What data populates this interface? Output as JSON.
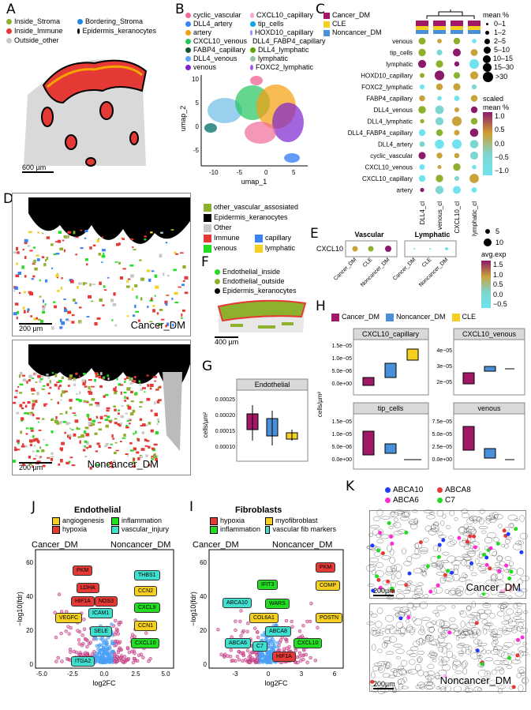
{
  "panels": {
    "A": "A",
    "B": "B",
    "C": "C",
    "D": "D",
    "E": "E",
    "F": "F",
    "G": "G",
    "H": "H",
    "I": "I",
    "J": "J",
    "K": "K"
  },
  "A": {
    "legend": [
      "Inside_Stroma",
      "Bordering_Stroma",
      "Inside_Immune",
      "Epidermis_keranocytes",
      "Outside_other"
    ],
    "colors": [
      "#8db02d",
      "#1e88e5",
      "#e53935",
      "#000000",
      "#c8c8c8"
    ],
    "scale": "600 µm"
  },
  "B": {
    "legend_col1": [
      "cyclic_vascular",
      "DLL4_artery",
      "artery",
      "CXCL10_venous",
      "FABP4_capillary",
      "DLL4_venous",
      "venous"
    ],
    "legend_col2": [
      "CXCL10_capillary",
      "tip_cells",
      "HOXD10_capillary",
      "DLL4_FABP4_capillary",
      "DLL4_lymphatic",
      "lymphatic",
      "FOXC2_lymphatic"
    ],
    "colors1": [
      "#f06b9a",
      "#3b82f6",
      "#f59e0b",
      "#22c55e",
      "#14532d",
      "#60a5fa",
      "#7e22ce"
    ],
    "colors2": [
      "#f9a8d4",
      "#0ea5e9",
      "#a78bfa",
      "#0f766e",
      "#65a30d",
      "#99c2a2",
      "#a855f7"
    ],
    "xlabel": "umap_1",
    "ylabel": "umap_2",
    "xticks": [
      "-10",
      "-5",
      "0",
      "5"
    ],
    "yticks": [
      "-5",
      "0",
      "5",
      "10"
    ]
  },
  "C": {
    "legend_groups": [
      "Cancer_DM",
      "CLE",
      "Noncancer_DM"
    ],
    "group_colors": [
      "#a01866",
      "#f5d020",
      "#4a90d9"
    ],
    "rows": [
      "venous",
      "tip_cells",
      "lymphatic",
      "HOXD10_capillary",
      "FOXC2_lymphatic",
      "FABP4_capillary",
      "DLL4_venous",
      "DLL4_lymphatic",
      "DLL4_FABP4_capillary",
      "DLL4_artery",
      "cyclic_vascular",
      "CXCL10_venous",
      "CXCL10_capillary",
      "artery"
    ],
    "cols": [
      "DLL4_cl",
      "venous_cl",
      "CXCL10_cl",
      "lymphatic_cl"
    ],
    "size_title": "mean %",
    "sizes": [
      "0–1",
      "1–2",
      "2–5",
      "5–10",
      "10–15",
      "15–30",
      ">30"
    ],
    "color_title": "scaled mean %",
    "color_ticks": [
      "1.0",
      "0.5",
      "0.0",
      "−0.5",
      "−1.0"
    ]
  },
  "D": {
    "legend": [
      "other_vascular_assosiated",
      "Epidermis_keranocytes",
      "Other",
      "Immune",
      "capillary",
      "venous",
      "lymphatic"
    ],
    "colors": [
      "#8db02d",
      "#000000",
      "#c8c8c8",
      "#e53935",
      "#3b82f6",
      "#22dd22",
      "#f5d020"
    ],
    "top_label": "Cancer_DM",
    "bottom_label": "Noncancer_DM",
    "scale": "200 µm"
  },
  "E": {
    "facets": [
      "Vascular",
      "Lymphatic"
    ],
    "gene": "CXCL10",
    "xticks": [
      "Cancer_DM",
      "CLE",
      "Noncancer_DM",
      "Cancer_DM",
      "CLE",
      "Noncancer_DM"
    ],
    "size_ticks": [
      "5",
      "10"
    ],
    "color_title": "avg.exp",
    "color_ticks": [
      "1.5",
      "1.0",
      "0.5",
      "0.0",
      "−0.5"
    ]
  },
  "F": {
    "legend": [
      "Endothelial_inside",
      "Endothelial_outside",
      "Epidermis_keranocytes"
    ],
    "colors": [
      "#22dd22",
      "#8db02d",
      "#000000"
    ],
    "scale": "400 µm"
  },
  "G": {
    "facet": "Endothelial",
    "ylabel": "cells/µm²",
    "yticks": [
      "0.00025",
      "0.00020",
      "0.00015",
      "0.00010"
    ]
  },
  "H": {
    "legend": [
      "Cancer_DM",
      "Noncancer_DM",
      "CLE"
    ],
    "colors": [
      "#a01866",
      "#4a90d9",
      "#f5d020"
    ],
    "facets": [
      "CXCL10_capillary",
      "CXCL10_venous",
      "tip_cells",
      "venous"
    ],
    "ylabel": "cells/µm²",
    "yticks_a": [
      "1.5e−05",
      "1.0e−05",
      "5.0e−06",
      "0.0e+00"
    ],
    "yticks_b": [
      "4e−05",
      "3e−05",
      "2e−05"
    ],
    "yticks_c": [
      "1.5e−05",
      "1.0e−05",
      "5.0e−06",
      "0.0e+00"
    ],
    "yticks_d": [
      "7.5e−05",
      "5.0e−05",
      "2.5e−05",
      "0.0e+00"
    ]
  },
  "J": {
    "title": "Endothelial",
    "legend": [
      "angiogenesis",
      "inflammation",
      "hypoxia",
      "vascular_injury"
    ],
    "legend_colors": [
      "#f5d020",
      "#22dd22",
      "#e53935",
      "#40e0d0"
    ],
    "left": "Cancer_DM",
    "right": "Noncancer_DM",
    "xlabel": "log2FC",
    "ylabel": "−log10(fdr)",
    "xticks": [
      "-5.0",
      "-2.5",
      "0.0",
      "2.5",
      "5.0"
    ],
    "yticks": [
      "0",
      "20",
      "40",
      "60"
    ],
    "genes": [
      {
        "g": "PKM",
        "c": "#e53935"
      },
      {
        "g": "LDHA",
        "c": "#e53935"
      },
      {
        "g": "HIF1A",
        "c": "#e53935"
      },
      {
        "g": "NOS3",
        "c": "#e53935"
      },
      {
        "g": "VEGFC",
        "c": "#f5d020"
      },
      {
        "g": "ICAM1",
        "c": "#40e0d0"
      },
      {
        "g": "SELE",
        "c": "#40e0d0"
      },
      {
        "g": "ITGA2",
        "c": "#40e0d0"
      },
      {
        "g": "THBS1",
        "c": "#40e0d0"
      },
      {
        "g": "CCN2",
        "c": "#f5d020"
      },
      {
        "g": "CXCL9",
        "c": "#22dd22"
      },
      {
        "g": "CCN1",
        "c": "#f5d020"
      },
      {
        "g": "CXCL10",
        "c": "#22dd22"
      }
    ]
  },
  "I": {
    "title": "Fibroblasts",
    "legend": [
      "hypoxia",
      "myofibroblast",
      "inflammation",
      "vascular fib markers"
    ],
    "legend_colors": [
      "#e53935",
      "#f5d020",
      "#22dd22",
      "#40e0d0"
    ],
    "left": "Cancer_DM",
    "right": "Noncancer_DM",
    "xlabel": "log2FC",
    "ylabel": "−log10(fdr)",
    "xticks": [
      "-3",
      "0",
      "3",
      "6"
    ],
    "yticks": [
      "0",
      "20",
      "40",
      "60"
    ],
    "genes": [
      {
        "g": "PKM",
        "c": "#e53935"
      },
      {
        "g": "IFIT3",
        "c": "#22dd22"
      },
      {
        "g": "COMP",
        "c": "#f5d020"
      },
      {
        "g": "ABCA10",
        "c": "#40e0d0"
      },
      {
        "g": "WARS",
        "c": "#22dd22"
      },
      {
        "g": "COL6A1",
        "c": "#f5d020"
      },
      {
        "g": "POSTN",
        "c": "#f5d020"
      },
      {
        "g": "ABCA8",
        "c": "#40e0d0"
      },
      {
        "g": "ABCA6",
        "c": "#40e0d0"
      },
      {
        "g": "C7",
        "c": "#40e0d0"
      },
      {
        "g": "CXCL10",
        "c": "#22dd22"
      },
      {
        "g": "HIF1A",
        "c": "#e53935"
      }
    ]
  },
  "K": {
    "legend": [
      "ABCA10",
      "ABCA8",
      "ABCA6",
      "C7"
    ],
    "colors": [
      "#1e3cff",
      "#e53935",
      "#ff2bd6",
      "#22dd22"
    ],
    "top_label": "Cancer_DM",
    "bottom_label": "Noncancer_DM",
    "scale": "200µm"
  }
}
